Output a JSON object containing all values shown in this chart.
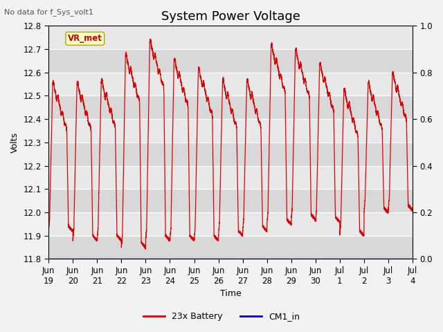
{
  "title": "System Power Voltage",
  "no_data_label": "No data for f_Sys_volt1",
  "vr_met_label": "VR_met",
  "xlabel": "Time",
  "ylabel": "Volts",
  "ylim_left": [
    11.8,
    12.8
  ],
  "ylim_right": [
    0.0,
    1.0
  ],
  "yticks_left": [
    11.8,
    11.9,
    12.0,
    12.1,
    12.2,
    12.3,
    12.4,
    12.5,
    12.6,
    12.7,
    12.8
  ],
  "yticks_right": [
    0.0,
    0.2,
    0.4,
    0.6,
    0.8,
    1.0
  ],
  "xtick_labels": [
    "Jun\n19",
    "Jun\n20",
    "Jun\n21",
    "Jun\n22",
    "Jun\n23",
    "Jun\n24",
    "Jun\n25",
    "Jun\n26",
    "Jun\n27",
    "Jun\n28",
    "Jun\n29",
    "Jun\n30",
    "Jul\n1",
    "Jul\n2",
    "Jul\n3",
    "Jul\n4"
  ],
  "fig_bg_color": "#f2f2f2",
  "plot_bg_color": "#e8e8e8",
  "stripe_color": "#d8d8d8",
  "grid_color": "#ffffff",
  "battery_color": "#dd0000",
  "cm1_color": "#0000cc",
  "legend_entries": [
    "23x Battery",
    "CM1_in"
  ],
  "title_fontsize": 13,
  "label_fontsize": 9,
  "tick_fontsize": 8.5,
  "n_days": 15
}
